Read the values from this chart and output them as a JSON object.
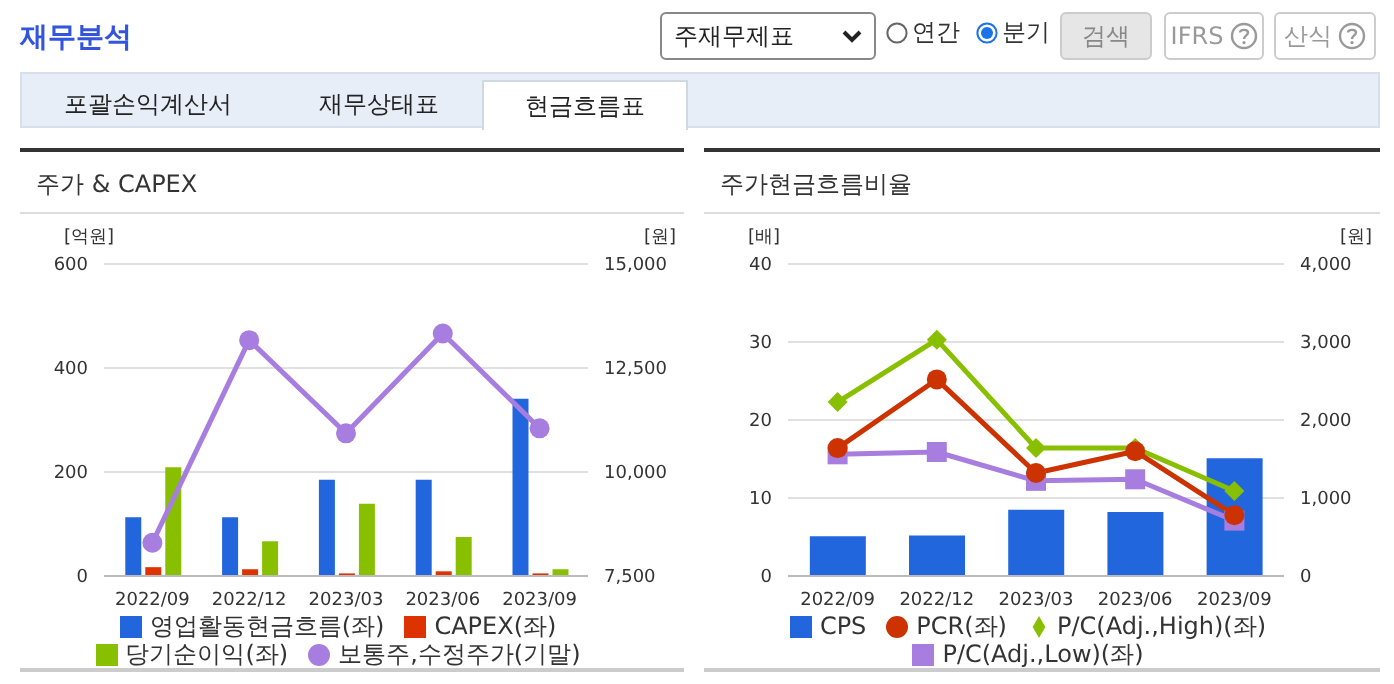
{
  "chart_data": [
    {
      "type": "other",
      "title": "재무분석",
      "annotations": [
        "주재무제표",
        "연간",
        "분기",
        "검색",
        "IFRS",
        "산식",
        "포괄손익계산서",
        "재무상태표",
        "현금흐름표"
      ]
    },
    {
      "type": "bar",
      "title": "주가 & CAPEX",
      "ylabel": "[억원]",
      "y2label": "[원]",
      "categories": [
        "2022/09",
        "2022/12",
        "2023/03",
        "2023/06",
        "2023/09"
      ],
      "series": [
        {
          "name": "영업활동현금흐름(좌)",
          "color": "#2266dd",
          "values": [
            113,
            113,
            185,
            185,
            341
          ]
        },
        {
          "name": "CAPEX(좌)",
          "color": "#dd3300",
          "values": [
            17,
            13,
            5,
            9,
            5
          ]
        },
        {
          "name": "당기순이익(좌)",
          "color": "#88c000",
          "values": [
            209,
            67,
            139,
            75,
            13
          ]
        },
        {
          "name": "보통주,수정주가(기말)",
          "type": "line",
          "axis": "y2",
          "marker": "circle",
          "color": "#a77ee0",
          "values": [
            8300,
            13170,
            10930,
            13330,
            11050
          ]
        }
      ],
      "ylim": [
        0,
        600
      ],
      "yticks": [
        0,
        200,
        400,
        600
      ],
      "y2lim": [
        7500,
        15000
      ],
      "y2ticks": [
        {
          "value": 7500,
          "label": "7,500"
        },
        {
          "value": 10000,
          "label": "10,000"
        },
        {
          "value": 12500,
          "label": "12,500"
        },
        {
          "value": 15000,
          "label": "15,000"
        }
      ],
      "grid": "y",
      "legend": "bottom"
    },
    {
      "type": "bar",
      "title": "주가현금흐름비율",
      "ylabel": "[배]",
      "y2label": "[원]",
      "categories": [
        "2022/09",
        "2022/12",
        "2023/03",
        "2023/06",
        "2023/09"
      ],
      "series": [
        {
          "name": "CPS",
          "color": "#2266dd",
          "axis": "y2",
          "values": [
            510,
            520,
            850,
            820,
            1510
          ]
        },
        {
          "name": "PCR(좌)",
          "type": "line",
          "marker": "circle",
          "color": "#cc3300",
          "values": [
            16.4,
            25.2,
            13.2,
            16.0,
            7.8
          ]
        },
        {
          "name": "P/C(Adj.,High)(좌)",
          "type": "line",
          "marker": "diamond",
          "color": "#88c000",
          "values": [
            22.3,
            30.3,
            16.4,
            16.4,
            10.9
          ]
        },
        {
          "name": "P/C(Adj.,Low)(좌)",
          "type": "line",
          "marker": "square",
          "color": "#a77ee0",
          "values": [
            15.6,
            15.9,
            12.2,
            12.4,
            7.1
          ]
        }
      ],
      "ylim": [
        0,
        40
      ],
      "yticks": [
        0,
        10,
        20,
        30,
        40
      ],
      "y2lim": [
        0,
        4000
      ],
      "y2ticks": [
        0,
        {
          "value": 1000,
          "label": "1,000"
        },
        {
          "value": 2000,
          "label": "2,000"
        },
        {
          "value": 3000,
          "label": "3,000"
        },
        {
          "value": 4000,
          "label": "4,000"
        }
      ],
      "grid": "y",
      "legend": "bottom"
    }
  ]
}
